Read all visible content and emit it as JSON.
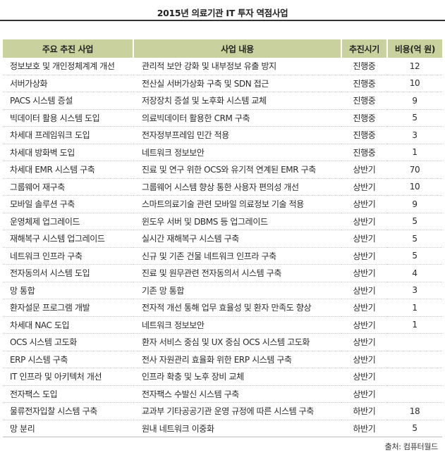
{
  "title": "2015년 의료기관 IT 투자 역점사업",
  "table": {
    "headers": [
      "주요 추진 사업",
      "사업 내용",
      "추진시기",
      "비용(억 원)"
    ],
    "rows": [
      {
        "name": "정보보호 및 개인정체계계 개선",
        "desc": "관리적 보안 강화 및 내부정보 유출 방지",
        "time": "진행중",
        "cost": "12"
      },
      {
        "name": "서버가상화",
        "desc": "전산실 서버가상화 구축 및 SDN 접근",
        "time": "진행중",
        "cost": "10"
      },
      {
        "name": "PACS 시스템 증설",
        "desc": "저장장치 증설 및 노후화 시스템 교체",
        "time": "진행중",
        "cost": "9"
      },
      {
        "name": "빅데이터 활용 시스템 도입",
        "desc": "의료빅데이터 활용한 CRM 구축",
        "time": "진행중",
        "cost": "5"
      },
      {
        "name": "차세대 프레임워크 도입",
        "desc": "전자정부프레임 민간 적용",
        "time": "진행중",
        "cost": "3"
      },
      {
        "name": "차세대 방화벽 도입",
        "desc": "네트워크 정보보안",
        "time": "진행중",
        "cost": "1"
      },
      {
        "name": "차세대 EMR 시스템 구축",
        "desc": "진료 및 연구 위한 OCS와 유기적 연계된 EMR 구축",
        "time": "상반기",
        "cost": "70"
      },
      {
        "name": "그룹웨어 재구축",
        "desc": "그룹웨어 시스템 향상 통한 사용자 편의성 개선",
        "time": "상반기",
        "cost": "10"
      },
      {
        "name": "모바일 솔루션 구축",
        "desc": "스마트의료기술 관련 모바일 의료정보 기술 적용",
        "time": "상반기",
        "cost": "9"
      },
      {
        "name": "운영체제 업그레이드",
        "desc": "윈도우 서버 및 DBMS 등 업그레이드",
        "time": "상반기",
        "cost": "5"
      },
      {
        "name": "재해복구 시스템 업그레이드",
        "desc": "실시간 재해복구 시스템 구축",
        "time": "상반기",
        "cost": "5"
      },
      {
        "name": "네트워크 인프라 구축",
        "desc": "신규 및 기존 건물 네트워크 인프라 구축",
        "time": "상반기",
        "cost": "5"
      },
      {
        "name": "전자동의서 시스템 도입",
        "desc": "진료 및 원무관련 전자동의서 시스템 구축",
        "time": "상반기",
        "cost": "4"
      },
      {
        "name": "망 통합",
        "desc": "기존 망 통합",
        "time": "상반기",
        "cost": "3"
      },
      {
        "name": "환자설문 프로그램 개발",
        "desc": "전자적 개선 통해 업무 효율성 및 환자 만족도 향상",
        "time": "상반기",
        "cost": "1"
      },
      {
        "name": "차세대 NAC 도입",
        "desc": "네트워크 정보보안",
        "time": "상반기",
        "cost": "1"
      },
      {
        "name": "OCS 시스템 고도화",
        "desc": "환자 서비스 중심 및 UX 중심 OCS 시스템 고도화",
        "time": "상반기",
        "cost": ""
      },
      {
        "name": "ERP 시스템 구축",
        "desc": "전사 자원관리 효율화 위한 ERP 시스템 구축",
        "time": "상반기",
        "cost": ""
      },
      {
        "name": "IT 인프라 및 아키텍처 개선",
        "desc": "인프라 확충 및 노후 장비 교체",
        "time": "상반기",
        "cost": ""
      },
      {
        "name": "전자팩스 도입",
        "desc": "전자팩스 수발신 시스템 구축",
        "time": "상반기",
        "cost": ""
      },
      {
        "name": "물류전자입찰 시스템 구축",
        "desc": "교과부 기타공공기관 운영 규정에 따른 시스템 구축",
        "time": "하반기",
        "cost": "18"
      },
      {
        "name": "망 분리",
        "desc": "원내 네트워크 이중화",
        "time": "하반기",
        "cost": "5"
      }
    ]
  },
  "source": "출처: 컴퓨터월드",
  "colors": {
    "header_bg": "#c9d29f",
    "title_rule": "#333333"
  }
}
